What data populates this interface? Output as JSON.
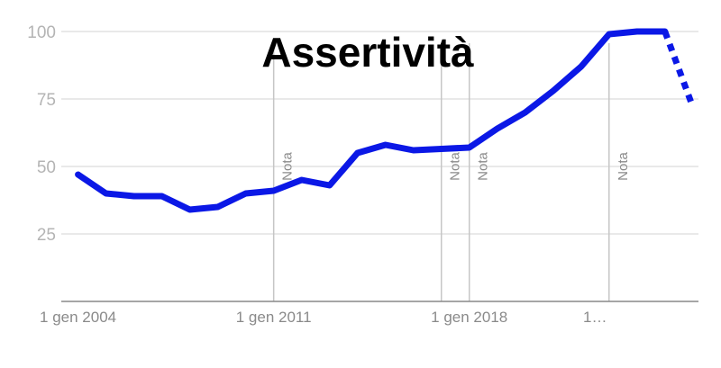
{
  "chart_data": {
    "type": "line",
    "title": "Assertività",
    "xlabel": "",
    "ylabel": "",
    "ylim": [
      0,
      100
    ],
    "y_ticks": [
      25,
      50,
      75,
      100
    ],
    "grid": true,
    "x_tick_labels": [
      {
        "x": 2004,
        "label": "1 gen 2004"
      },
      {
        "x": 2011,
        "label": "1 gen 2011"
      },
      {
        "x": 2018,
        "label": "1 gen 2018"
      },
      {
        "x": 2022.5,
        "label": "1…"
      }
    ],
    "annotations": [
      {
        "x": 2011,
        "label": "Nota"
      },
      {
        "x": 2017,
        "label": "Nota"
      },
      {
        "x": 2018,
        "label": "Nota"
      },
      {
        "x": 2023,
        "label": "Nota"
      }
    ],
    "series": [
      {
        "color": "#0b18e6",
        "points": [
          [
            2004,
            47
          ],
          [
            2005,
            40
          ],
          [
            2006,
            39
          ],
          [
            2007,
            39
          ],
          [
            2008,
            34
          ],
          [
            2009,
            35
          ],
          [
            2010,
            40
          ],
          [
            2011,
            41
          ],
          [
            2012,
            45
          ],
          [
            2013,
            43
          ],
          [
            2014,
            55
          ],
          [
            2015,
            58
          ],
          [
            2016,
            56
          ],
          [
            2017,
            56.5
          ],
          [
            2018,
            57
          ],
          [
            2019,
            64
          ],
          [
            2020,
            70
          ],
          [
            2021,
            78
          ],
          [
            2022,
            87
          ],
          [
            2023,
            99
          ],
          [
            2024,
            100
          ],
          [
            2025,
            100
          ]
        ],
        "projected": [
          [
            2025,
            100
          ],
          [
            2026,
            72
          ]
        ]
      }
    ]
  }
}
